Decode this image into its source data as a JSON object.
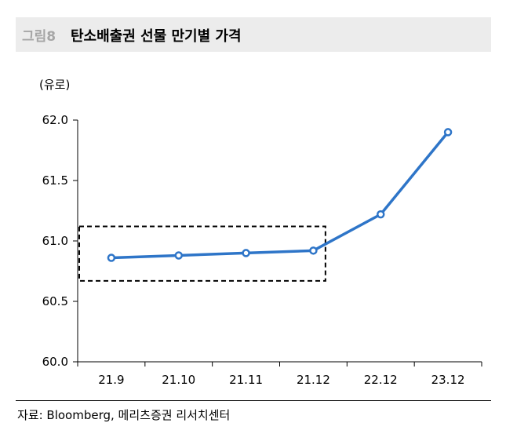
{
  "header": {
    "figure_no": "그림8",
    "title": "탄소배출권 선물 만기별 가격"
  },
  "unit_label": "(유로)",
  "source": "자료: Bloomberg, 메리츠증권 리서치센터",
  "colors": {
    "line": "#2e75c8",
    "header_bg": "#ececec",
    "marker_fill": "#ffffff"
  },
  "chart_data": {
    "type": "line",
    "title": "탄소배출권 선물 만기별 가격",
    "ylabel": "(유로)",
    "xlabel": "",
    "categories": [
      "21.9",
      "21.10",
      "21.11",
      "21.12",
      "22.12",
      "23.12"
    ],
    "series": [
      {
        "values": [
          60.86,
          60.88,
          60.9,
          60.92,
          61.22,
          61.9
        ]
      }
    ],
    "ylim": [
      60.0,
      62.0
    ],
    "yticks": [
      "60.0",
      "60.5",
      "61.0",
      "61.5",
      "62.0"
    ],
    "grid": false,
    "legend": "none",
    "highlight_box": {
      "from_category": "21.9",
      "to_category": "21.12",
      "y_range": [
        60.67,
        61.12
      ]
    }
  }
}
